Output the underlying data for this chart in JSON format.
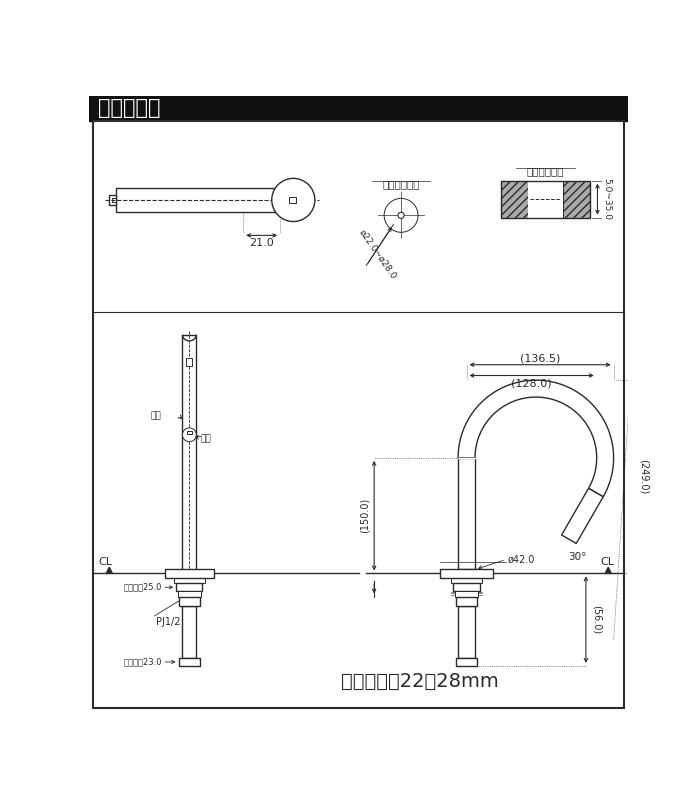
{
  "title": "単水栓金具",
  "line_color": "#2a2a2a",
  "header_bg": "#111111",
  "header_text": "#ffffff",
  "bg_color": "#ffffff",
  "labels": {
    "tenban_ana": "天板取付穴径",
    "tenban_haba": "天板締付範囲",
    "dim_21": "21.0",
    "dim_136": "(136.5)",
    "dim_128": "(128.0)",
    "dim_150": "(150.0)",
    "dim_249": "(249.0)",
    "dim_56": "(56.0)",
    "dim_42": "ø42.0",
    "dim_22_28": "ø22.0~ø28.0",
    "dim_5_35": "5.0~35.0",
    "dim_angle": "30°",
    "dim_25": "大角対辺25.0",
    "dim_23": "大角対辺23.0",
    "pj12": "PJ1/2",
    "stop_water": "止水",
    "flow_water": "吐水",
    "bottom_text": "天板取付穴22～28mm"
  }
}
